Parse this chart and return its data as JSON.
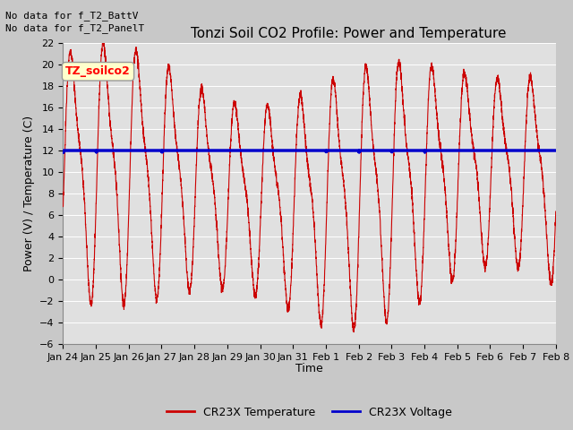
{
  "title": "Tonzi Soil CO2 Profile: Power and Temperature",
  "ylabel": "Power (V) / Temperature (C)",
  "xlabel": "Time",
  "annotations": [
    "No data for f_T2_BattV",
    "No data for f_T2_PanelT"
  ],
  "legend_label": "TZ_soilco2",
  "ylim": [
    -6,
    22
  ],
  "yticks": [
    -6,
    -4,
    -2,
    0,
    2,
    4,
    6,
    8,
    10,
    12,
    14,
    16,
    18,
    20,
    22
  ],
  "xtick_labels": [
    "Jan 24",
    "Jan 25",
    "Jan 26",
    "Jan 27",
    "Jan 28",
    "Jan 29",
    "Jan 30",
    "Jan 31",
    "Feb 1",
    "Feb 2",
    "Feb 3",
    "Feb 4",
    "Feb 5",
    "Feb 6",
    "Feb 7",
    "Feb 8"
  ],
  "red_line_color": "#cc0000",
  "blue_line_color": "#0000cc",
  "fig_bg_color": "#c8c8c8",
  "plot_bg_color": "#e0e0e0",
  "voltage_value": 12.0,
  "legend_temp_label": "CR23X Temperature",
  "legend_volt_label": "CR23X Voltage",
  "title_fontsize": 11,
  "axis_fontsize": 9,
  "tick_fontsize": 8,
  "annot_fontsize": 8,
  "legend_fontsize": 9
}
